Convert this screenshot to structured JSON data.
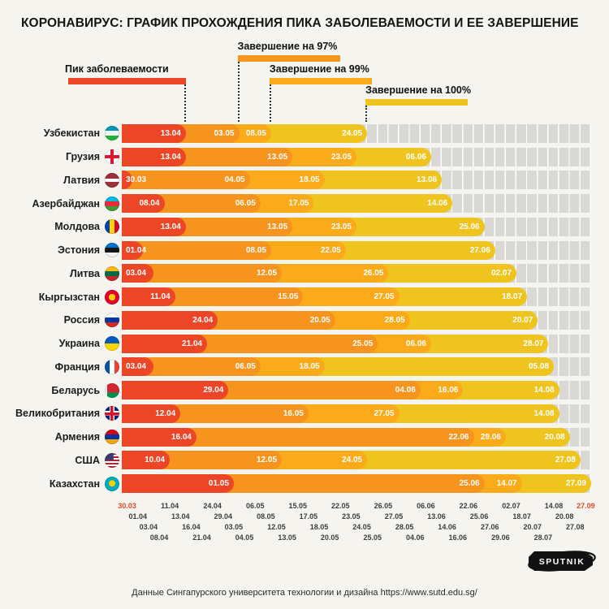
{
  "title": "КОРОНАВИРУС: ГРАФИК ПРОХОЖДЕНИЯ ПИКА ЗАБОЛЕВАЕМОСТИ И ЕЕ ЗАВЕРШЕНИЕ",
  "legend": {
    "peak": "Пик заболеваемости",
    "done97": "Завершение на 97%",
    "done99": "Завершение на 99%",
    "done100": "Завершение на 100%"
  },
  "footer": {
    "source": "Данные Сингапурского университета технологии и дизайна https://www.sutd.edu.sg/",
    "logo": "SPUTNIK"
  },
  "colors": {
    "peak": "#ed4627",
    "done97": "#f7941e",
    "done99": "#fbab19",
    "done100": "#f0c41f",
    "track": "#d9d8d5",
    "background": "#f6f4ef"
  },
  "chart_data": {
    "type": "bar",
    "variant": "horizontal-gantt-timeline",
    "series_labels": [
      "Пик заболеваемости",
      "Завершение на 97%",
      "Завершение на 99%",
      "Завершение на 100%"
    ],
    "axis_labels": [
      {
        "t": "30.03",
        "row": 0,
        "accent": true
      },
      {
        "t": "01.04",
        "row": 1
      },
      {
        "t": "03.04",
        "row": 2
      },
      {
        "t": "08.04",
        "row": 3
      },
      {
        "t": "11.04",
        "row": 0
      },
      {
        "t": "13.04",
        "row": 1
      },
      {
        "t": "16.04",
        "row": 2
      },
      {
        "t": "21.04",
        "row": 3
      },
      {
        "t": "24.04",
        "row": 0
      },
      {
        "t": "29.04",
        "row": 1
      },
      {
        "t": "03.05",
        "row": 2
      },
      {
        "t": "04.05",
        "row": 3
      },
      {
        "t": "06.05",
        "row": 0
      },
      {
        "t": "08.05",
        "row": 1
      },
      {
        "t": "12.05",
        "row": 2
      },
      {
        "t": "13.05",
        "row": 3
      },
      {
        "t": "15.05",
        "row": 0
      },
      {
        "t": "17.05",
        "row": 1
      },
      {
        "t": "18.05",
        "row": 2
      },
      {
        "t": "20.05",
        "row": 3
      },
      {
        "t": "22.05",
        "row": 0
      },
      {
        "t": "23.05",
        "row": 1
      },
      {
        "t": "24.05",
        "row": 2
      },
      {
        "t": "25.05",
        "row": 3
      },
      {
        "t": "26.05",
        "row": 0
      },
      {
        "t": "27.05",
        "row": 1
      },
      {
        "t": "28.05",
        "row": 2
      },
      {
        "t": "04.06",
        "row": 3
      },
      {
        "t": "06.06",
        "row": 0
      },
      {
        "t": "13.06",
        "row": 1
      },
      {
        "t": "14.06",
        "row": 2
      },
      {
        "t": "16.06",
        "row": 3
      },
      {
        "t": "22.06",
        "row": 0
      },
      {
        "t": "25.06",
        "row": 1
      },
      {
        "t": "27.06",
        "row": 2
      },
      {
        "t": "29.06",
        "row": 3
      },
      {
        "t": "02.07",
        "row": 0
      },
      {
        "t": "18.07",
        "row": 1
      },
      {
        "t": "20.07",
        "row": 2
      },
      {
        "t": "28.07",
        "row": 3
      },
      {
        "t": "14.08",
        "row": 0
      },
      {
        "t": "20.08",
        "row": 1
      },
      {
        "t": "27.08",
        "row": 2
      },
      {
        "t": "27.09",
        "row": 0,
        "accent": true
      }
    ],
    "interpolated_columns": {
      "10.04": 3.5,
      "12.04": 4.5,
      "01.05": 9.5,
      "16.05": 16.5,
      "14.07": 36.5,
      "05.08": 39.5
    },
    "countries": [
      {
        "name": "Узбекистан",
        "flag": "uz",
        "peak": "13.04",
        "done97": "03.05",
        "done99": "08.05",
        "done100": "24.05"
      },
      {
        "name": "Грузия",
        "flag": "ge",
        "peak": "13.04",
        "done97": "13.05",
        "done99": "23.05",
        "done100": "06.06"
      },
      {
        "name": "Латвия",
        "flag": "lv",
        "peak": "30.03",
        "done97": "04.05",
        "done99": "18.05",
        "done100": "13.06"
      },
      {
        "name": "Азербайджан",
        "flag": "az",
        "peak": "08.04",
        "done97": "06.05",
        "done99": "17.05",
        "done100": "14.06"
      },
      {
        "name": "Молдова",
        "flag": "md",
        "peak": "13.04",
        "done97": "13.05",
        "done99": "23.05",
        "done100": "25.06"
      },
      {
        "name": "Эстония",
        "flag": "ee",
        "peak": "01.04",
        "done97": "08.05",
        "done99": "22.05",
        "done100": "27.06"
      },
      {
        "name": "Литва",
        "flag": "lt",
        "peak": "03.04",
        "done97": "12.05",
        "done99": "26.05",
        "done100": "02.07"
      },
      {
        "name": "Кыргызстан",
        "flag": "kg",
        "peak": "11.04",
        "done97": "15.05",
        "done99": "27.05",
        "done100": "18.07"
      },
      {
        "name": "Россия",
        "flag": "ru",
        "peak": "24.04",
        "done97": "20.05",
        "done99": "28.05",
        "done100": "20.07"
      },
      {
        "name": "Украина",
        "flag": "ua",
        "peak": "21.04",
        "done97": "25.05",
        "done99": "06.06",
        "done100": "28.07"
      },
      {
        "name": "Франция",
        "flag": "fr",
        "peak": "03.04",
        "done97": "06.05",
        "done99": "18.05",
        "done100": "05.08"
      },
      {
        "name": "Беларусь",
        "flag": "by",
        "peak": "29.04",
        "done97": "04.06",
        "done99": "16.06",
        "done100": "14.08"
      },
      {
        "name": "Великобритания",
        "flag": "gb",
        "peak": "12.04",
        "done97": "16.05",
        "done99": "27.05",
        "done100": "14.08"
      },
      {
        "name": "Армения",
        "flag": "am",
        "peak": "16.04",
        "done97": "22.06",
        "done99": "29.06",
        "done100": "20.08"
      },
      {
        "name": "США",
        "flag": "us",
        "peak": "10.04",
        "done97": "12.05",
        "done99": "24.05",
        "done100": "27.08"
      },
      {
        "name": "Казахстан",
        "flag": "kz",
        "peak": "01.05",
        "done97": "25.06",
        "done99": "14.07",
        "done100": "27.09"
      }
    ]
  }
}
